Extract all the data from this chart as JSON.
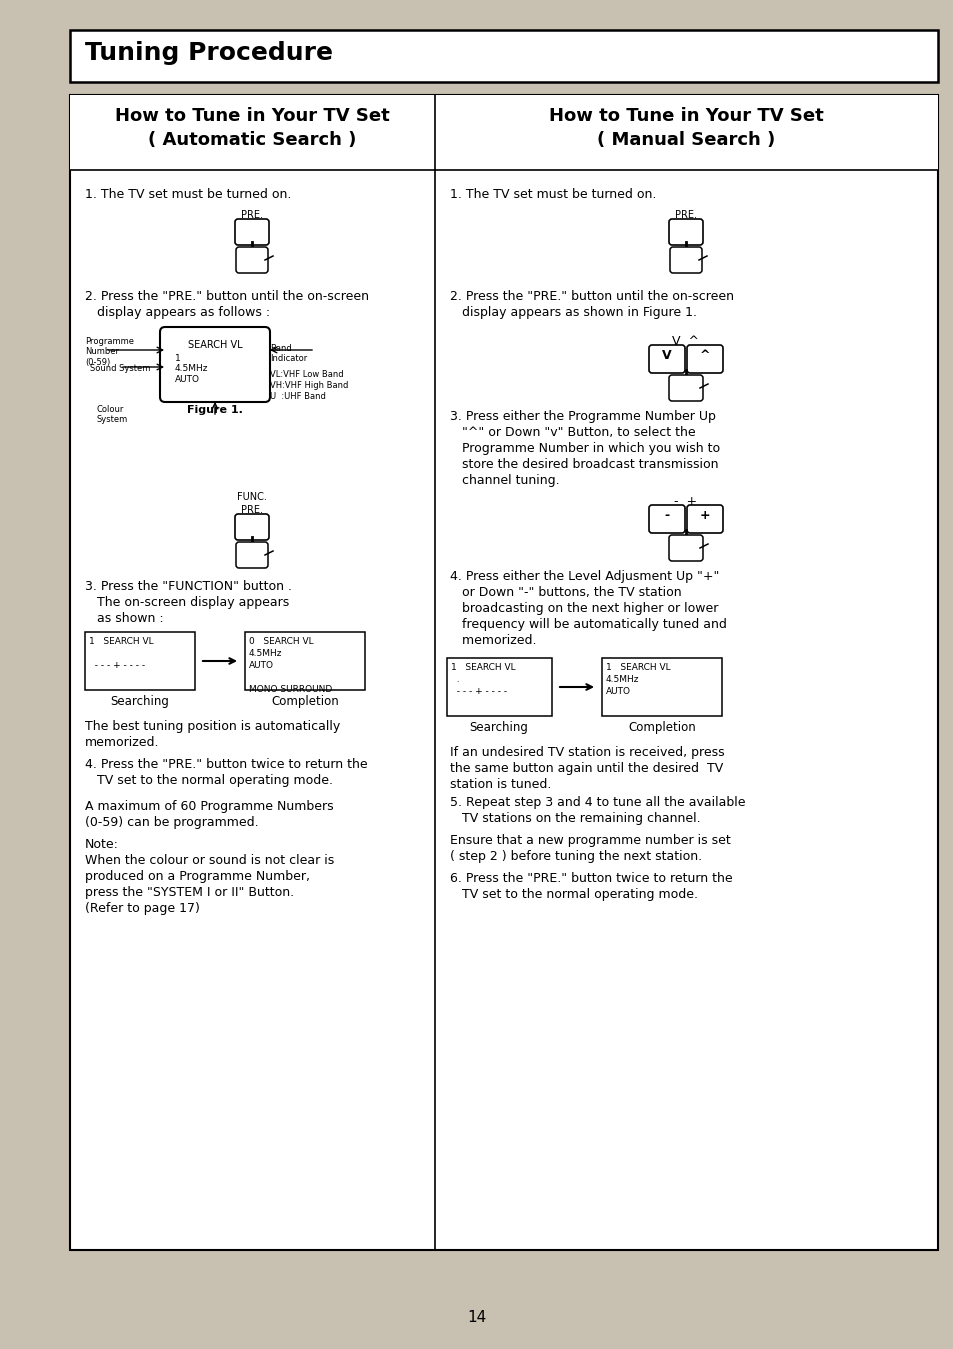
{
  "bg_color": "#c8c0b0",
  "page_bg": "#c8c0b0",
  "white": "#ffffff",
  "black": "#000000",
  "title": "Tuning Procedure",
  "left_header": "How to Tune in Your TV Set\n( Automatic Search )",
  "right_header": "How to Tune in Your TV Set\n( Manual Search )",
  "page_number": "14",
  "left_steps": [
    "1. The TV set must be turned on.",
    "2. Press the \"PRE.\" button until the on-screen\n    display appears as follows :",
    "3. Press the \"FUNCTION\" button .\n    The on-screen display appears\n    as shown :",
    "4. Press the \"PRE.\" button twice to return the\n    TV set to the normal operating mode.",
    "A maximum of 60 Programme Numbers\n(0-59) can be programmed.",
    "Note:\nWhen the colour or sound is not clear is\nproduced on a Programme Number,\npress the \"SYSTEM I or II\" Button.\n(Refer to page 17)"
  ],
  "right_steps": [
    "1. The TV set must be turned on.",
    "2. Press the \"PRE.\" button until the on-screen\n    display appears as shown in Figure 1.",
    "3. Press either the Programme Number Up\n    \"^\" or Down \"v\" Button, to select the\n    Programme Number in which you wish to\n    store the desired broadcast transmission\n    channel tuning.",
    "4. Press either the Level Adjusment Up \"+\"\n    or Down \"-\" buttons, the TV station\n    broadcasting on the next higher or lower\n    frequency will be automatically tuned and\n    memorized.",
    "If an undesired TV station is received, press\nthe same button again until the desired  TV\nstation is tuned.",
    "5. Repeat step 3 and 4 to tune all the available\n    TV stations on the remaining channel.",
    "Ensure that a new programme number is set\n( step 2 ) before tuning the next station.",
    "6. Press the \"PRE.\" button twice to return the\n    TV set to the normal operating mode."
  ]
}
